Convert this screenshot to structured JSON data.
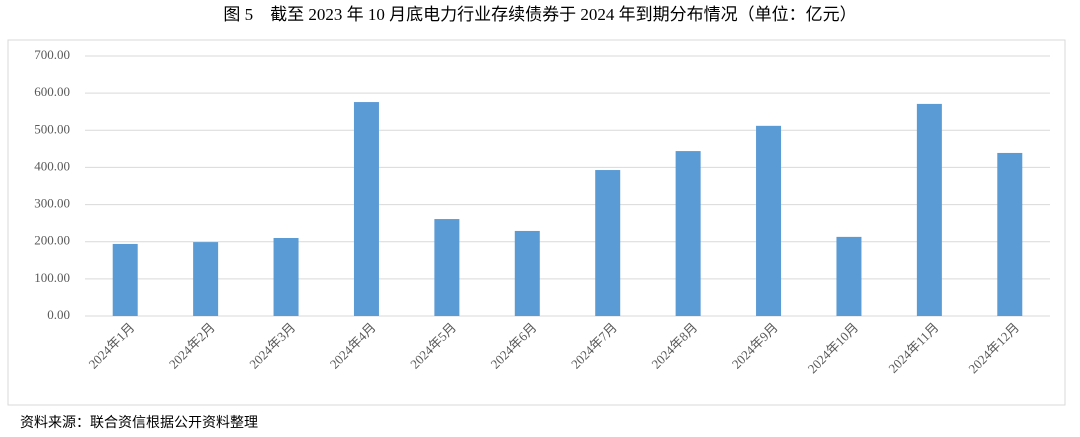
{
  "chart_data": {
    "type": "bar",
    "title": "图 5　截至 2023 年 10 月底电力行业存续债券于 2024 年到期分布情况（单位：亿元）",
    "categories": [
      "2024年1月",
      "2024年2月",
      "2024年3月",
      "2024年4月",
      "2024年5月",
      "2024年6月",
      "2024年7月",
      "2024年8月",
      "2024年9月",
      "2024年10月",
      "2024年11月",
      "2024年12月"
    ],
    "values": [
      194,
      199,
      210,
      576,
      261,
      229,
      393,
      444,
      512,
      213,
      571,
      439
    ],
    "color": "#5b9bd5",
    "ylim": [
      0,
      700
    ],
    "yticks": [
      {
        "value": 0,
        "label": "0.00"
      },
      {
        "value": 100,
        "label": "100.00"
      },
      {
        "value": 200,
        "label": "200.00"
      },
      {
        "value": 300,
        "label": "300.00"
      },
      {
        "value": 400,
        "label": "400.00"
      },
      {
        "value": 500,
        "label": "500.00"
      },
      {
        "value": 600,
        "label": "600.00"
      },
      {
        "value": 700,
        "label": "700.00"
      }
    ],
    "grid": true,
    "source": "资料来源：联合资信根据公开资料整理"
  }
}
